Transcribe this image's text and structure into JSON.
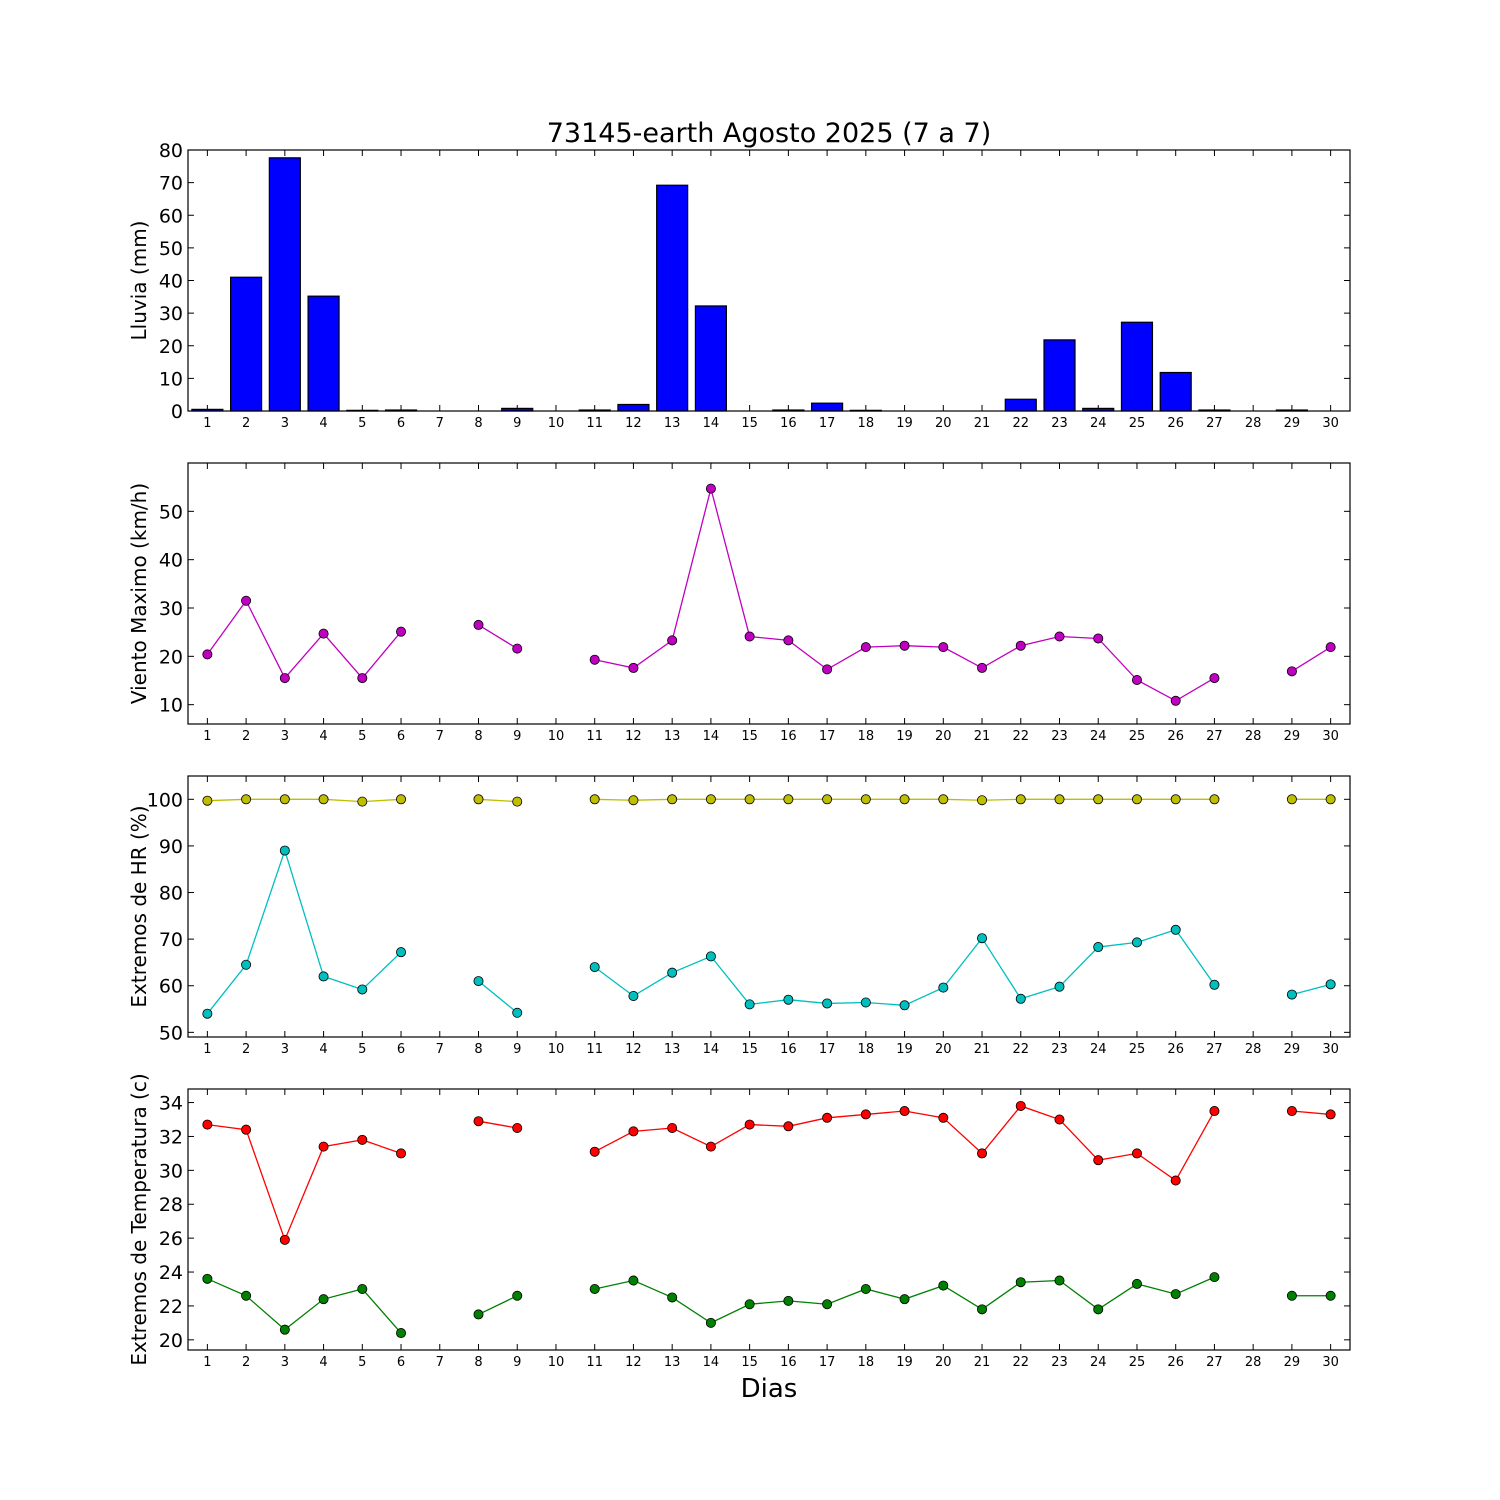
{
  "figure": {
    "title": "73145-earth Agosto 2025  (7 a 7)",
    "xlabel": "Dias"
  },
  "chart_data": [
    {
      "type": "bar",
      "ylabel": "Lluvia (mm)",
      "xlim": [
        0.5,
        30.5
      ],
      "ylim": [
        0,
        80
      ],
      "yticks": [
        0,
        10,
        20,
        30,
        40,
        50,
        60,
        70,
        80
      ],
      "xticks": [
        1,
        2,
        3,
        4,
        5,
        6,
        7,
        8,
        9,
        10,
        11,
        12,
        13,
        14,
        15,
        16,
        17,
        18,
        19,
        20,
        21,
        22,
        23,
        24,
        25,
        26,
        27,
        28,
        29,
        30
      ],
      "grid": false,
      "categories": [
        1,
        2,
        3,
        4,
        5,
        6,
        7,
        8,
        9,
        10,
        11,
        12,
        13,
        14,
        15,
        16,
        17,
        18,
        19,
        20,
        21,
        22,
        23,
        24,
        25,
        26,
        27,
        28,
        29,
        30
      ],
      "series": [
        {
          "color": "#0000ff",
          "values": [
            0.5,
            41,
            77.6,
            35.2,
            0.2,
            0.3,
            0,
            0,
            0.8,
            0,
            0.3,
            2,
            69.2,
            32.2,
            0,
            0.3,
            2.4,
            0.2,
            0,
            0,
            0,
            3.6,
            21.8,
            0.8,
            27.2,
            11.8,
            0.3,
            0,
            0.3,
            0
          ]
        }
      ]
    },
    {
      "type": "line",
      "ylabel": "Viento Maximo (km/h)",
      "xlim": [
        0.5,
        30.5
      ],
      "ylim": [
        6,
        60
      ],
      "yticks": [
        10,
        20,
        30,
        40,
        50
      ],
      "xticks": [
        1,
        2,
        3,
        4,
        5,
        6,
        7,
        8,
        9,
        10,
        11,
        12,
        13,
        14,
        15,
        16,
        17,
        18,
        19,
        20,
        21,
        22,
        23,
        24,
        25,
        26,
        27,
        28,
        29,
        30
      ],
      "grid": false,
      "x": [
        1,
        2,
        3,
        4,
        5,
        6,
        7,
        8,
        9,
        10,
        11,
        12,
        13,
        14,
        15,
        16,
        17,
        18,
        19,
        20,
        21,
        22,
        23,
        24,
        25,
        26,
        27,
        28,
        29,
        30
      ],
      "series": [
        {
          "color": "#c000c0",
          "values": [
            20.4,
            31.5,
            15.5,
            24.7,
            15.5,
            25.1,
            null,
            26.5,
            21.6,
            null,
            19.3,
            17.6,
            23.3,
            54.7,
            24.1,
            23.3,
            17.3,
            21.9,
            22.2,
            21.9,
            17.6,
            22.2,
            24.1,
            23.7,
            15.1,
            10.8,
            15.5,
            null,
            16.9,
            21.9
          ]
        }
      ]
    },
    {
      "type": "line",
      "ylabel": "Extremos de HR (%)",
      "xlim": [
        0.5,
        30.5
      ],
      "ylim": [
        49,
        105
      ],
      "yticks": [
        50,
        60,
        70,
        80,
        90,
        100
      ],
      "xticks": [
        1,
        2,
        3,
        4,
        5,
        6,
        7,
        8,
        9,
        10,
        11,
        12,
        13,
        14,
        15,
        16,
        17,
        18,
        19,
        20,
        21,
        22,
        23,
        24,
        25,
        26,
        27,
        28,
        29,
        30
      ],
      "grid": false,
      "x": [
        1,
        2,
        3,
        4,
        5,
        6,
        7,
        8,
        9,
        10,
        11,
        12,
        13,
        14,
        15,
        16,
        17,
        18,
        19,
        20,
        21,
        22,
        23,
        24,
        25,
        26,
        27,
        28,
        29,
        30
      ],
      "series": [
        {
          "color": "#bfbf00",
          "values": [
            99.7,
            100,
            100,
            100,
            99.5,
            100,
            null,
            100,
            99.5,
            null,
            100,
            99.8,
            100,
            100,
            100,
            100,
            100,
            100,
            100,
            100,
            99.8,
            100,
            100,
            100,
            100,
            100,
            100,
            null,
            100,
            100
          ]
        },
        {
          "color": "#00bfbf",
          "values": [
            54,
            64.5,
            89,
            62,
            59.2,
            67.2,
            null,
            61,
            54.2,
            null,
            64,
            57.8,
            62.8,
            66.3,
            56,
            57,
            56.2,
            56.4,
            55.8,
            59.6,
            70.2,
            57.2,
            59.8,
            68.3,
            69.3,
            72,
            60.2,
            null,
            58.1,
            60.3
          ]
        }
      ]
    },
    {
      "type": "line",
      "ylabel": "Extremos de Temperatura (c)",
      "xlim": [
        0.5,
        30.5
      ],
      "ylim": [
        19.4,
        34.8
      ],
      "yticks": [
        20,
        22,
        24,
        26,
        28,
        30,
        32,
        34
      ],
      "xticks": [
        1,
        2,
        3,
        4,
        5,
        6,
        7,
        8,
        9,
        10,
        11,
        12,
        13,
        14,
        15,
        16,
        17,
        18,
        19,
        20,
        21,
        22,
        23,
        24,
        25,
        26,
        27,
        28,
        29,
        30
      ],
      "grid": false,
      "x": [
        1,
        2,
        3,
        4,
        5,
        6,
        7,
        8,
        9,
        10,
        11,
        12,
        13,
        14,
        15,
        16,
        17,
        18,
        19,
        20,
        21,
        22,
        23,
        24,
        25,
        26,
        27,
        28,
        29,
        30
      ],
      "series": [
        {
          "color": "#ff0000",
          "values": [
            32.7,
            32.4,
            25.9,
            31.4,
            31.8,
            31,
            null,
            32.9,
            32.5,
            null,
            31.1,
            32.3,
            32.5,
            31.4,
            32.7,
            32.6,
            33.1,
            33.3,
            33.5,
            33.1,
            31,
            33.8,
            33,
            30.6,
            31,
            29.4,
            33.5,
            null,
            33.5,
            33.3
          ]
        },
        {
          "color": "#008000",
          "values": [
            23.6,
            22.6,
            20.6,
            22.4,
            23,
            20.4,
            null,
            21.5,
            22.6,
            null,
            23,
            23.5,
            22.5,
            21,
            22.1,
            22.3,
            22.1,
            23,
            22.4,
            23.2,
            21.8,
            23.4,
            23.5,
            21.8,
            23.3,
            22.7,
            23.7,
            null,
            22.6,
            22.6
          ]
        }
      ]
    }
  ]
}
